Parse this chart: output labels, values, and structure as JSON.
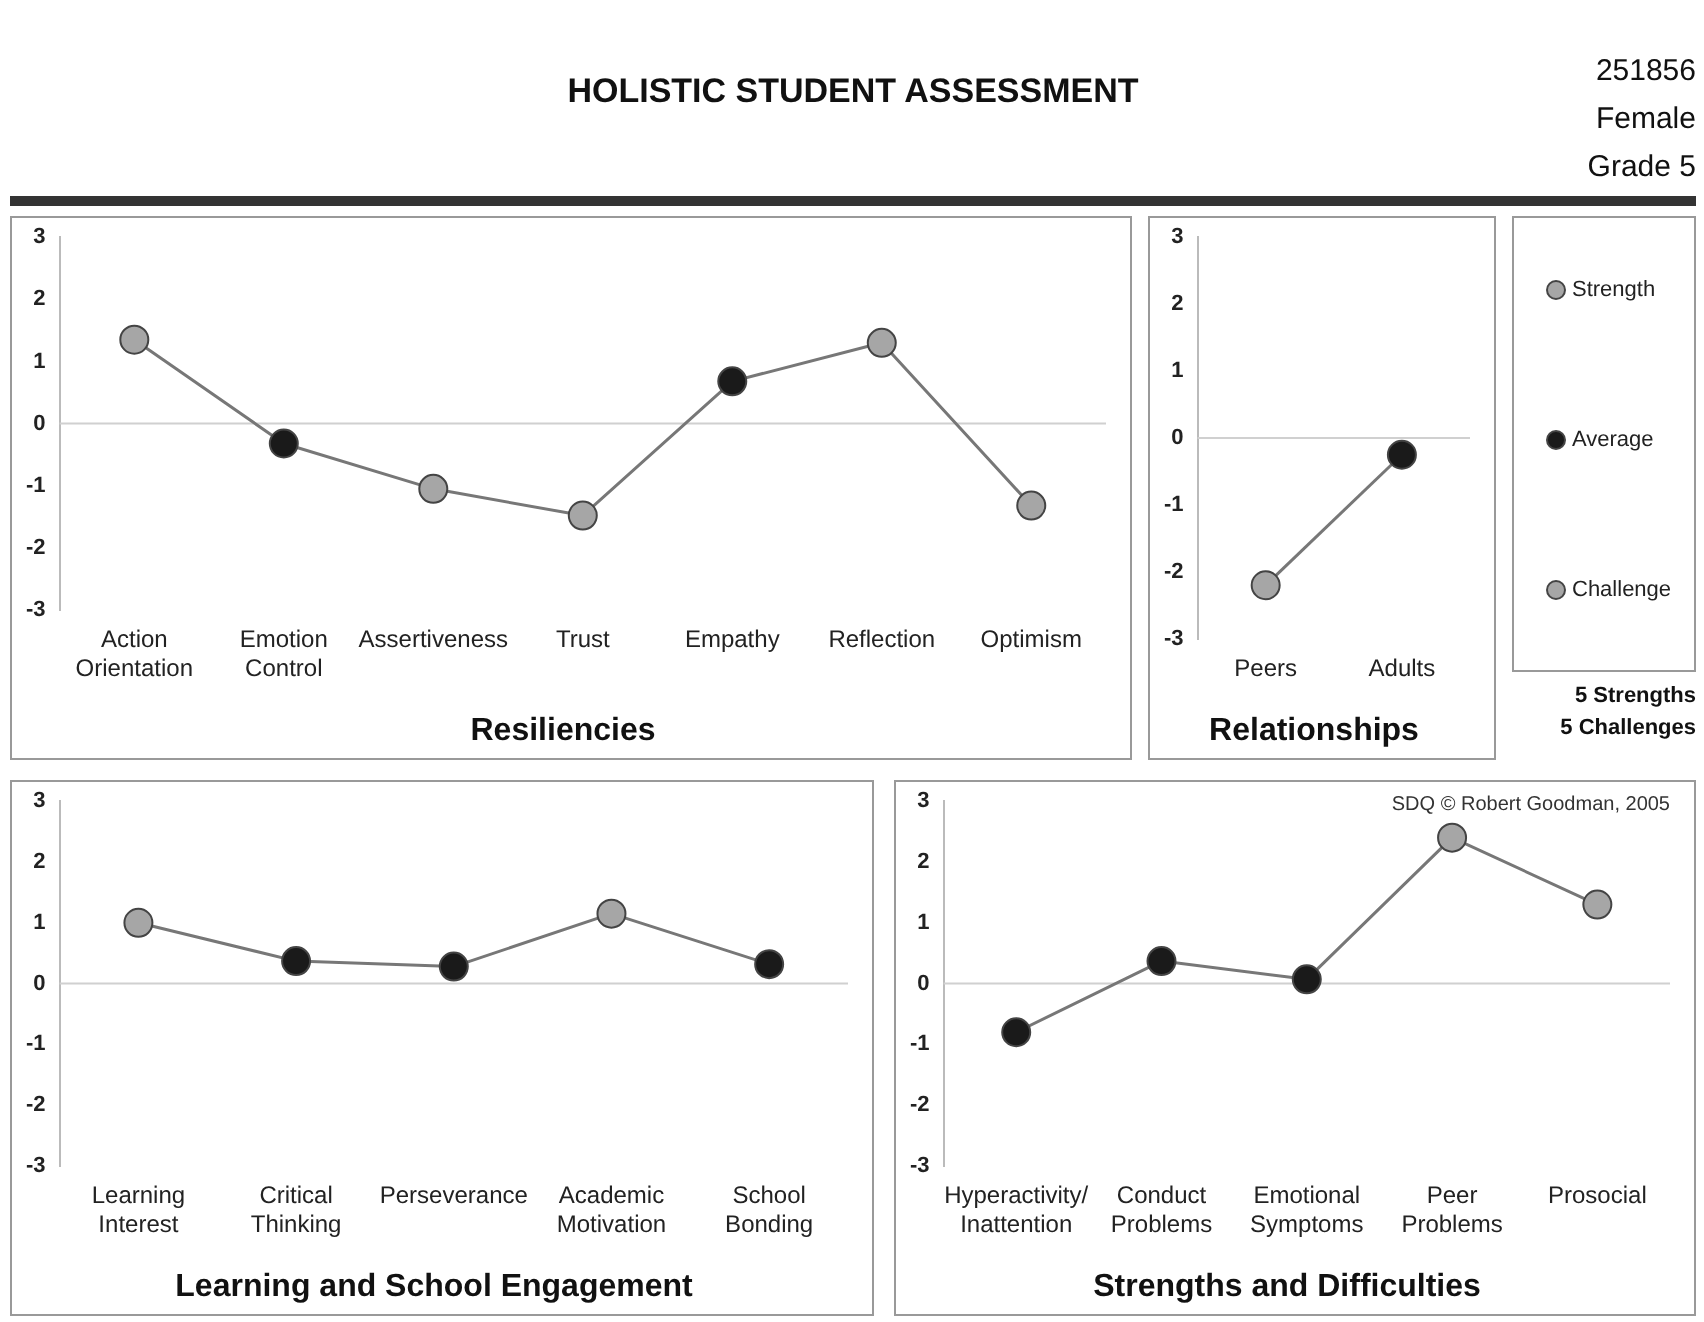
{
  "chart_data": [
    {
      "type": "other",
      "title": "HOLISTIC STUDENT ASSESSMENT",
      "annotations": [
        "251856",
        "Female",
        "Grade 5"
      ]
    },
    {
      "type": "line",
      "title": "Resiliencies",
      "categories": [
        "Action Orientation",
        "Emotion Control",
        "Assertiveness",
        "Trust",
        "Empathy",
        "Reflection",
        "Optimism"
      ],
      "series": [
        {
          "color": "#777777",
          "colors": [
            "#a6a6a6",
            "#1a1a1a",
            "#a6a6a6",
            "#a6a6a6",
            "#1a1a1a",
            "#a6a6a6",
            "#a6a6a6"
          ],
          "values": [
            1.35,
            -0.32,
            -1.05,
            -1.48,
            0.68,
            1.3,
            -1.32
          ]
        }
      ],
      "ylim": [
        -3,
        3
      ],
      "yticks": [
        -3,
        -2,
        -1,
        0,
        1,
        2,
        3
      ],
      "ref_lines": [
        {
          "axis": "y",
          "value": 0,
          "color": "#d0d0d0"
        }
      ],
      "marker": "circle",
      "grid": false,
      "legend": false
    },
    {
      "type": "line",
      "title": "Relationships",
      "categories": [
        "Peers",
        "Adults"
      ],
      "series": [
        {
          "color": "#777777",
          "colors": [
            "#a6a6a6",
            "#1a1a1a"
          ],
          "values": [
            -2.2,
            -0.25
          ]
        }
      ],
      "ylim": [
        -3,
        3
      ],
      "yticks": [
        -3,
        -2,
        -1,
        0,
        1,
        2,
        3
      ],
      "ref_lines": [
        {
          "axis": "y",
          "value": 0,
          "color": "#d0d0d0"
        }
      ],
      "marker": "circle",
      "grid": false,
      "legend": false
    },
    {
      "type": "other",
      "categories": [
        "Strength",
        "Average",
        "Challenge"
      ],
      "colors": [
        "#a6a6a6",
        "#1a1a1a",
        "#a6a6a6"
      ],
      "annotations": [
        "5 Strengths",
        "5 Challenges"
      ]
    },
    {
      "type": "line",
      "title": "Learning and School Engagement",
      "categories": [
        "Learning Interest",
        "Critical Thinking",
        "Perseverance",
        "Academic Motivation",
        "School Bonding"
      ],
      "series": [
        {
          "color": "#777777",
          "colors": [
            "#a6a6a6",
            "#1a1a1a",
            "#1a1a1a",
            "#a6a6a6",
            "#1a1a1a"
          ],
          "values": [
            1.0,
            0.37,
            0.28,
            1.15,
            0.32
          ]
        }
      ],
      "ylim": [
        -3,
        3
      ],
      "yticks": [
        -3,
        -2,
        -1,
        0,
        1,
        2,
        3
      ],
      "ref_lines": [
        {
          "axis": "y",
          "value": 0,
          "color": "#d0d0d0"
        }
      ],
      "marker": "circle",
      "grid": false,
      "legend": false
    },
    {
      "type": "line",
      "title": "Strengths and Difficulties",
      "categories": [
        "Hyperactivity/Inattention",
        "Conduct Problems",
        "Emotional Symptoms",
        "Peer Problems",
        "Prosocial"
      ],
      "series": [
        {
          "color": "#777777",
          "colors": [
            "#1a1a1a",
            "#1a1a1a",
            "#1a1a1a",
            "#a6a6a6",
            "#a6a6a6"
          ],
          "values": [
            -0.8,
            0.37,
            0.07,
            2.4,
            1.3
          ]
        }
      ],
      "ylim": [
        -3,
        3
      ],
      "yticks": [
        -3,
        -2,
        -1,
        0,
        1,
        2,
        3
      ],
      "ref_lines": [
        {
          "axis": "y",
          "value": 0,
          "color": "#d0d0d0"
        }
      ],
      "marker": "circle",
      "grid": false,
      "legend": false,
      "annotations": [
        "SDQ © Robert Goodman, 2005"
      ]
    }
  ]
}
